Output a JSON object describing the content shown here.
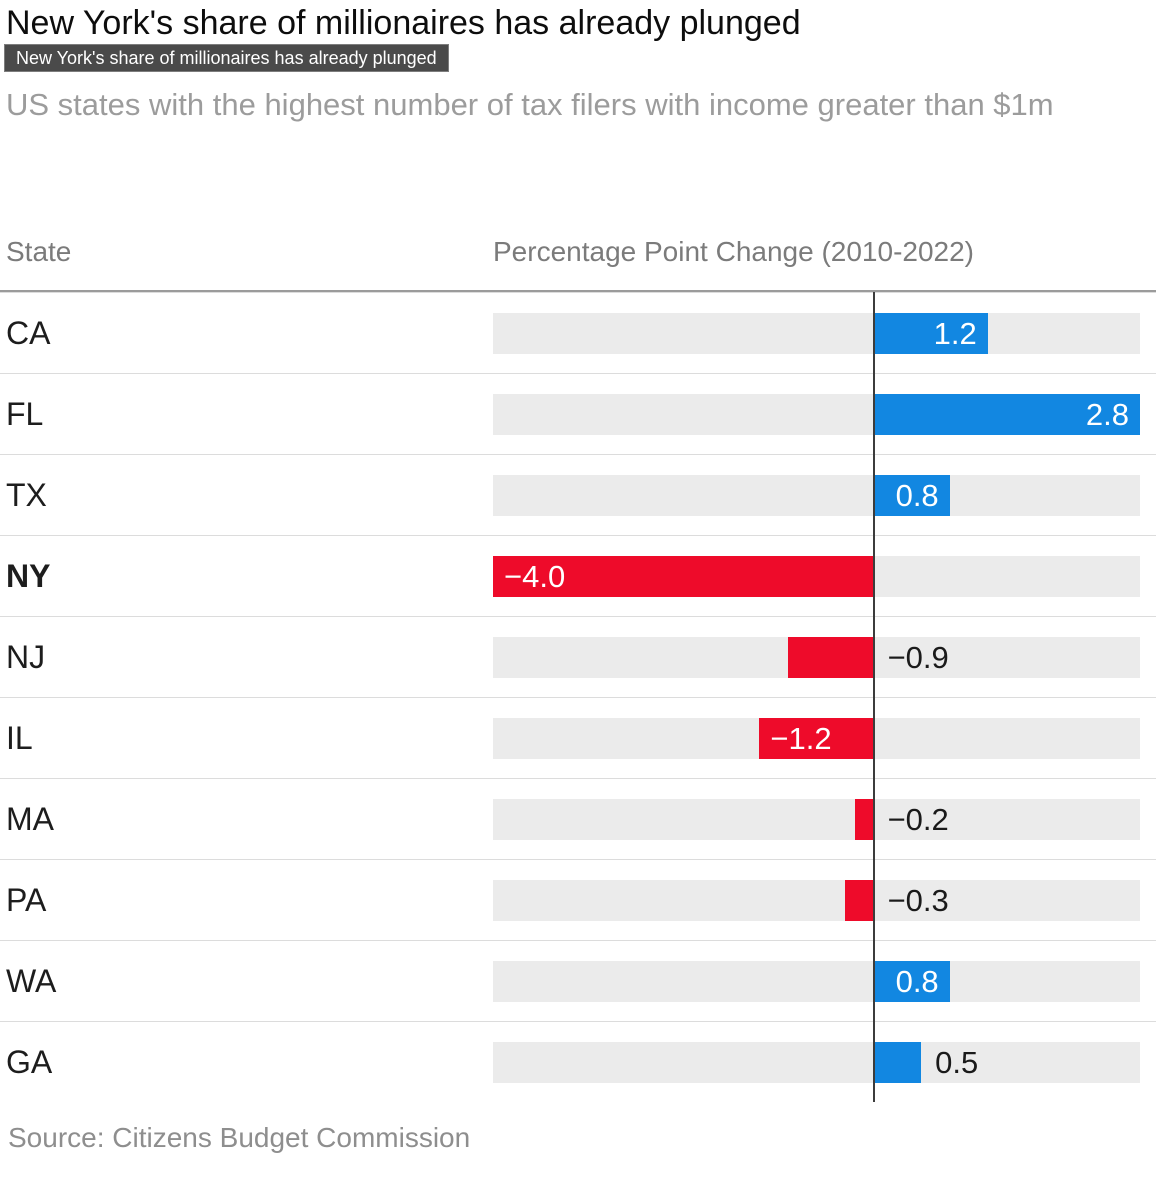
{
  "page": {
    "title": "New York's share of millionaires has already plunged",
    "tooltip": "New York's share of millionaires has already plunged",
    "subtitle": "US states with the highest number of tax filers with income greater than $1m",
    "source": "Source: Citizens Budget Commission"
  },
  "table": {
    "state_header": "State",
    "value_header": "Percentage Point Change (2010-2022)"
  },
  "colors": {
    "positive_bar": "#1287e1",
    "negative_bar": "#ee0b2a",
    "track": "#ebebeb",
    "zero_line": "#3c3c3c",
    "tooltip_bg": "#4a4a4a"
  },
  "chart_data": {
    "type": "bar",
    "orientation": "horizontal",
    "title": "New York's share of millionaires has already plunged",
    "subtitle": "US states with the highest number of tax filers with income greater than $1m",
    "xlabel": "Percentage Point Change (2010-2022)",
    "ylabel": "State",
    "categories": [
      "CA",
      "FL",
      "TX",
      "NY",
      "NJ",
      "IL",
      "MA",
      "PA",
      "WA",
      "GA"
    ],
    "values": [
      1.2,
      2.8,
      0.8,
      -4.0,
      -0.9,
      -1.2,
      -0.2,
      -0.3,
      0.8,
      0.5
    ],
    "bar_labels": [
      "1.2",
      "2.8",
      "0.8",
      "−4.0",
      "−0.9",
      "−1.2",
      "−0.2",
      "−0.3",
      "0.8",
      "0.5"
    ],
    "label_positions": [
      "inside",
      "inside",
      "inside",
      "inside",
      "outside",
      "inside",
      "outside",
      "outside",
      "inside",
      "outside"
    ],
    "highlighted_category": "NY",
    "xlim": [
      -4.0,
      2.8
    ],
    "grid": false,
    "legend": false,
    "source": "Citizens Budget Commission"
  }
}
